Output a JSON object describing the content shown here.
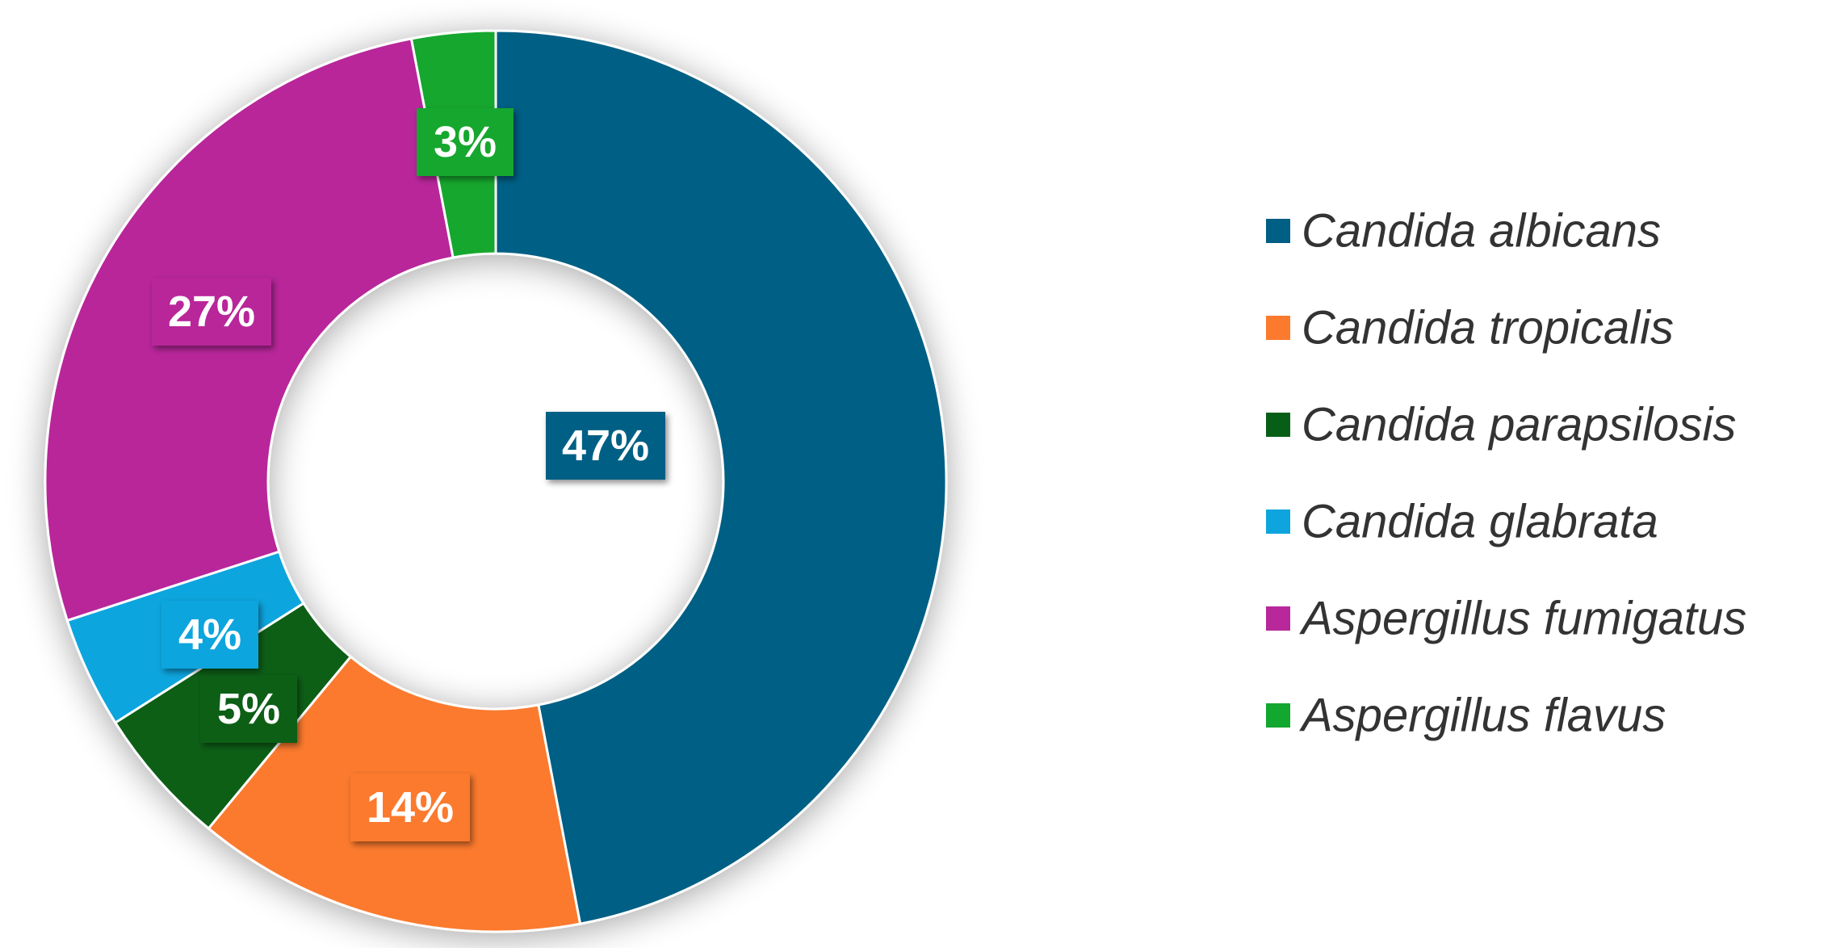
{
  "chart_data": {
    "type": "pie",
    "donut": true,
    "title": "",
    "legend_position": "right",
    "slices": [
      {
        "label": "Candida albicans",
        "value": 47,
        "display": "47%",
        "color": "#005f84"
      },
      {
        "label": "Candida tropicalis",
        "value": 14,
        "display": "14%",
        "color": "#fb7a2e"
      },
      {
        "label": "Candida parapsilosis",
        "value": 5,
        "display": "5%",
        "color": "#075f17"
      },
      {
        "label": "Candida glabrata",
        "value": 4,
        "display": "4%",
        "color": "#0ea5de"
      },
      {
        "label": "Aspergillus fumigatus",
        "value": 27,
        "display": "27%",
        "color": "#b8289a"
      },
      {
        "label": "Aspergillus flavus",
        "value": 3,
        "display": "3%",
        "color": "#12a72e"
      }
    ]
  }
}
